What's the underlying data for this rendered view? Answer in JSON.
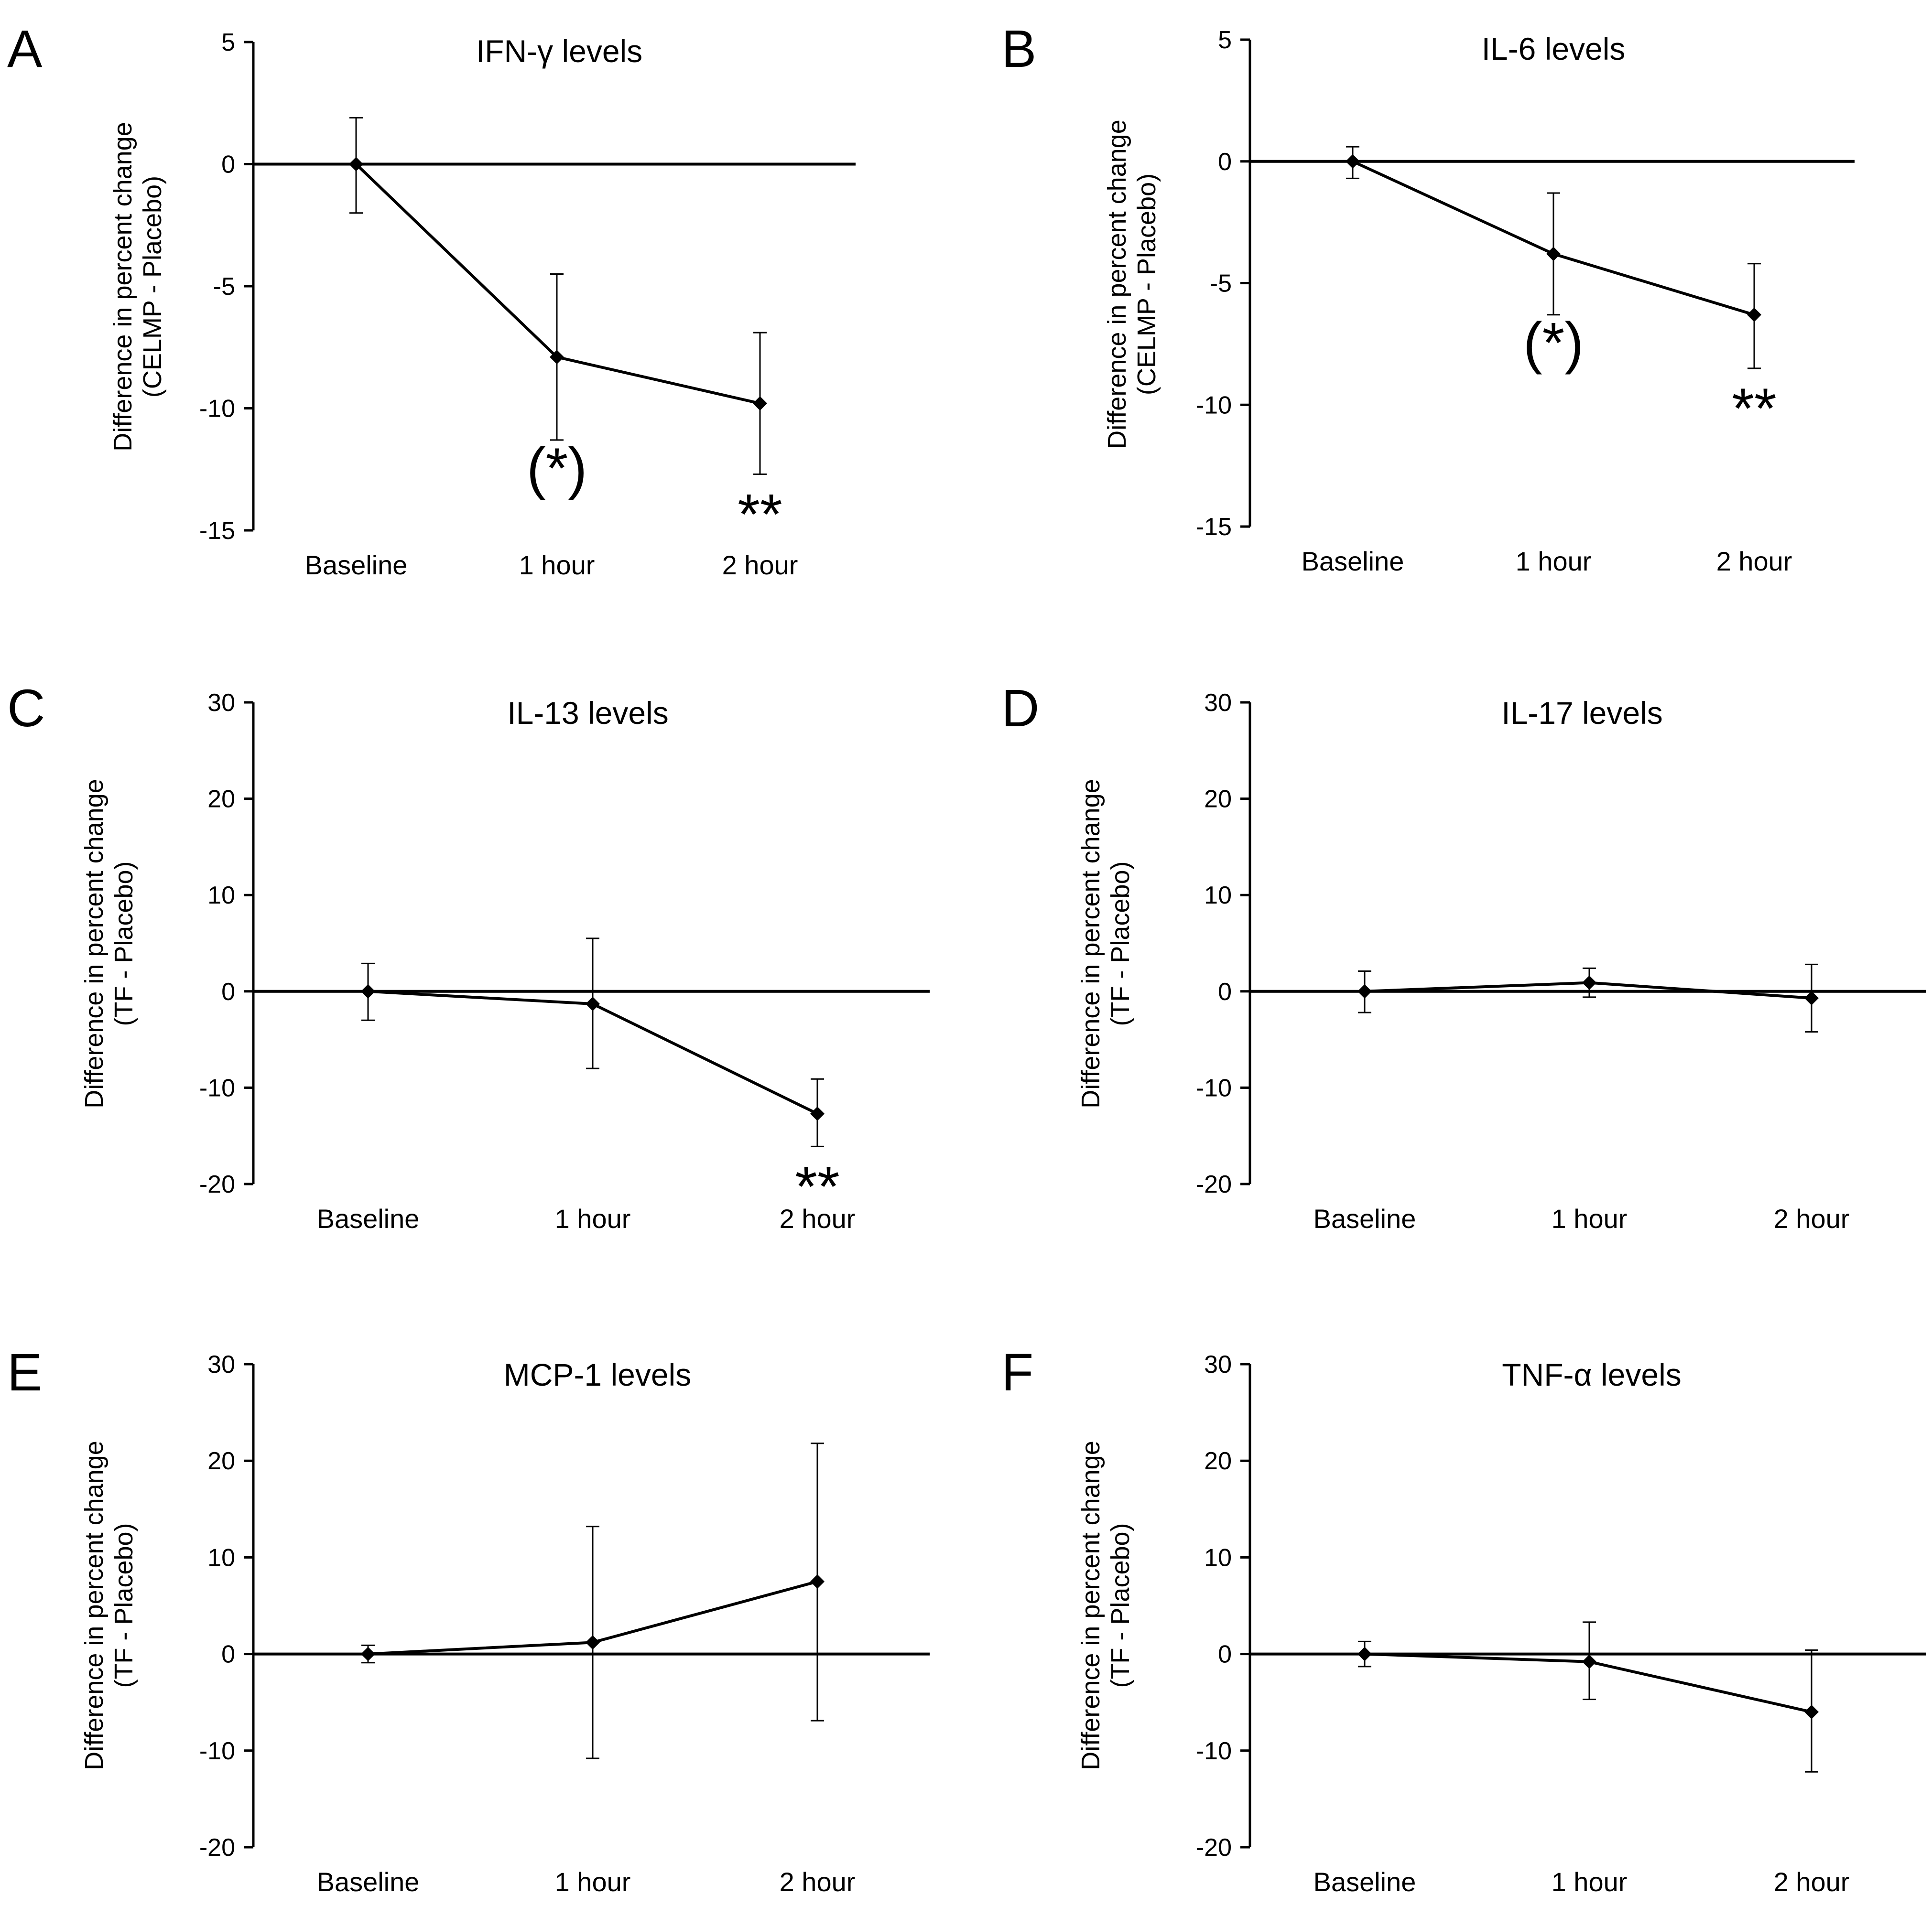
{
  "colors": {
    "line": "#000000",
    "background": "#ffffff"
  },
  "chart_data": [
    {
      "panel": "A",
      "type": "line",
      "title": "IFN-γ levels",
      "ylabel_line1": "Difference in percent change",
      "ylabel_line2": "(CELMP - Placebo)",
      "ylim": [
        -15,
        5
      ],
      "yticks": [
        5,
        0,
        -5,
        -10,
        -15
      ],
      "categories": [
        "Baseline",
        "1 hour",
        "2 hour"
      ],
      "values": [
        0,
        -7.9,
        -9.8
      ],
      "err_upper": [
        1.9,
        -4.5,
        -6.9
      ],
      "err_lower": [
        -2.0,
        -11.3,
        -12.7
      ],
      "annotations": [
        {
          "index": 1,
          "text": "(*)"
        },
        {
          "index": 2,
          "text": "**"
        }
      ]
    },
    {
      "panel": "B",
      "type": "line",
      "title": "IL-6 levels",
      "ylabel_line1": "Difference in percent change",
      "ylabel_line2": "(CELMP - Placebo)",
      "ylim": [
        -15,
        5
      ],
      "yticks": [
        5,
        0,
        -5,
        -10,
        -15
      ],
      "categories": [
        "Baseline",
        "1 hour",
        "2 hour"
      ],
      "values": [
        0,
        -3.8,
        -6.3
      ],
      "err_upper": [
        0.6,
        -1.3,
        -4.2
      ],
      "err_lower": [
        -0.7,
        -6.3,
        -8.5
      ],
      "annotations": [
        {
          "index": 1,
          "text": "(*)"
        },
        {
          "index": 2,
          "text": "**"
        }
      ]
    },
    {
      "panel": "C",
      "type": "line",
      "title": "IL-13 levels",
      "ylabel_line1": "Difference in percent change",
      "ylabel_line2": "(TF - Placebo)",
      "ylim": [
        -20,
        30
      ],
      "yticks": [
        30,
        20,
        10,
        0,
        -10,
        -20
      ],
      "categories": [
        "Baseline",
        "1 hour",
        "2 hour"
      ],
      "values": [
        0,
        -1.3,
        -12.7
      ],
      "err_upper": [
        2.9,
        5.5,
        -9.1
      ],
      "err_lower": [
        -3.0,
        -8.0,
        -16.1
      ],
      "annotations": [
        {
          "index": 2,
          "text": "**"
        }
      ]
    },
    {
      "panel": "D",
      "type": "line",
      "title": "IL-17 levels",
      "ylabel_line1": "Difference in percent change",
      "ylabel_line2": "(TF - Placebo)",
      "ylim": [
        -20,
        30
      ],
      "yticks": [
        30,
        20,
        10,
        0,
        -10,
        -20
      ],
      "categories": [
        "Baseline",
        "1 hour",
        "2 hour"
      ],
      "values": [
        0,
        0.9,
        -0.7
      ],
      "err_upper": [
        2.1,
        2.4,
        2.8
      ],
      "err_lower": [
        -2.2,
        -0.6,
        -4.2
      ],
      "annotations": []
    },
    {
      "panel": "E",
      "type": "line",
      "title": "MCP-1 levels",
      "ylabel_line1": "Difference in percent change",
      "ylabel_line2": "(TF - Placebo)",
      "ylim": [
        -20,
        30
      ],
      "yticks": [
        30,
        20,
        10,
        0,
        -10,
        -20
      ],
      "categories": [
        "Baseline",
        "1 hour",
        "2 hour"
      ],
      "values": [
        0,
        1.2,
        7.5
      ],
      "err_upper": [
        0.9,
        13.2,
        21.8
      ],
      "err_lower": [
        -0.9,
        -10.8,
        -6.9
      ],
      "annotations": []
    },
    {
      "panel": "F",
      "type": "line",
      "title": "TNF-α levels",
      "ylabel_line1": "Difference in percent change",
      "ylabel_line2": "(TF - Placebo)",
      "ylim": [
        -20,
        30
      ],
      "yticks": [
        30,
        20,
        10,
        0,
        -10,
        -20
      ],
      "categories": [
        "Baseline",
        "1 hour",
        "2 hour"
      ],
      "values": [
        0,
        -0.8,
        -6.0
      ],
      "err_upper": [
        1.3,
        3.3,
        0.4
      ],
      "err_lower": [
        -1.3,
        -4.7,
        -12.2
      ],
      "annotations": []
    }
  ]
}
